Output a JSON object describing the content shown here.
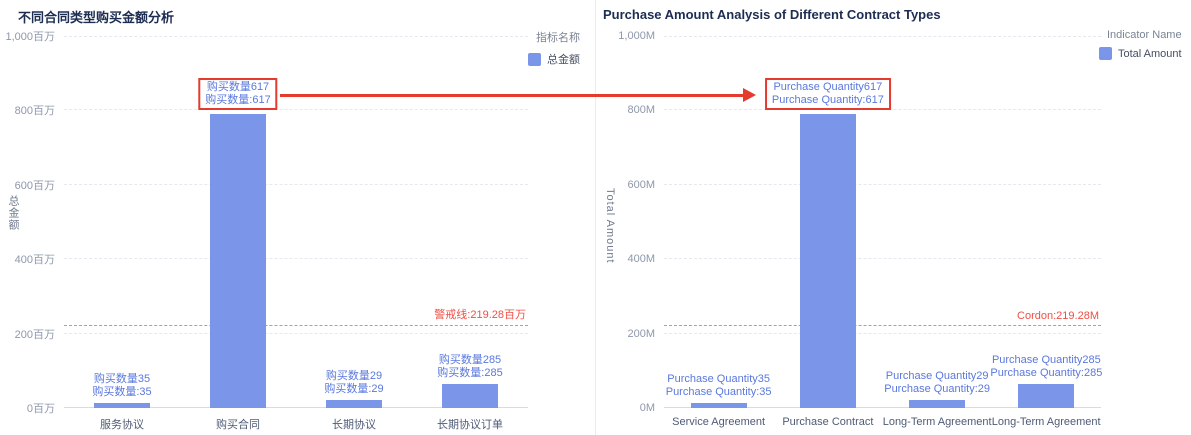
{
  "colors": {
    "bar_blue": "#7b95e9",
    "bar_label_blue": "#5a78dd",
    "highlight_red": "#e53a2e",
    "threshold_text_red": "#ee4f44",
    "threshold_line_red": "#f0837b",
    "title_navy": "#1d2d52",
    "tick_gray": "#8e98ab",
    "category_gray": "#4e5b76",
    "background": "#ffffff"
  },
  "annotations": {
    "arrow": {
      "description": "red arrow from left highlighted label box to right highlighted label box",
      "color": "#e53a2e"
    }
  },
  "chart_data": [
    {
      "type": "bar",
      "language": "Chinese",
      "title": "不同合同类型购买金额分析",
      "legend": {
        "title": "指标名称",
        "series": "总金额"
      },
      "ylabel": "总金额",
      "y_unit": "百万",
      "ylim": [
        0,
        1000
      ],
      "yticks": [
        "1,000百万",
        "800百万",
        "600百万",
        "400百万",
        "200百万",
        "0百万"
      ],
      "grid": "horizontal dashed",
      "categories": [
        "服务协议",
        "购买合同",
        "长期协议",
        "长期协议订单"
      ],
      "bars": [
        {
          "category": "服务协议",
          "label_line1": "购买数量35",
          "label_line2": "购买数量:35",
          "quantity": 35,
          "amount_m": 14,
          "highlighted": false
        },
        {
          "category": "购买合同",
          "label_line1": "购买数量617",
          "label_line2": "购买数量:617",
          "quantity": 617,
          "amount_m": 790,
          "highlighted": true
        },
        {
          "category": "长期协议",
          "label_line1": "购买数量29",
          "label_line2": "购买数量:29",
          "quantity": 29,
          "amount_m": 22,
          "highlighted": false
        },
        {
          "category": "长期协议订单",
          "label_line1": "购买数量285",
          "label_line2": "购买数量:285",
          "quantity": 285,
          "amount_m": 65,
          "highlighted": false
        }
      ],
      "threshold_line": {
        "label": "警戒线:219.28百万",
        "value_m": 219.28
      }
    },
    {
      "type": "bar",
      "language": "English",
      "title": "Purchase Amount Analysis of Different Contract Types",
      "legend": {
        "title": "Indicator Name",
        "series": "Total Amount"
      },
      "ylabel": "Total Amount",
      "y_unit": "M",
      "ylim": [
        0,
        1000
      ],
      "yticks": [
        "1,000M",
        "800M",
        "600M",
        "400M",
        "200M",
        "0M"
      ],
      "grid": "horizontal dashed",
      "categories": [
        "Service Agreement",
        "Purchase Contract",
        "Long-Term Agreement",
        "Long-Term Agreement O..."
      ],
      "bars": [
        {
          "category": "Service Agreement",
          "label_line1": "Purchase Quantity35",
          "label_line2": "Purchase Quantity:35",
          "quantity": 35,
          "amount_m": 14,
          "highlighted": false
        },
        {
          "category": "Purchase Contract",
          "label_line1": "Purchase Quantity617",
          "label_line2": "Purchase Quantity:617",
          "quantity": 617,
          "amount_m": 790,
          "highlighted": true
        },
        {
          "category": "Long-Term Agreement",
          "label_line1": "Purchase Quantity29",
          "label_line2": "Purchase Quantity:29",
          "quantity": 29,
          "amount_m": 22,
          "highlighted": false
        },
        {
          "category": "Long-Term Agreement Order",
          "label_line1": "Purchase Quantity285",
          "label_line2": "Purchase Quantity:285",
          "quantity": 285,
          "amount_m": 65,
          "highlighted": false
        }
      ],
      "threshold_line": {
        "label": "Cordon:219.28M",
        "value_m": 219.28
      }
    }
  ]
}
